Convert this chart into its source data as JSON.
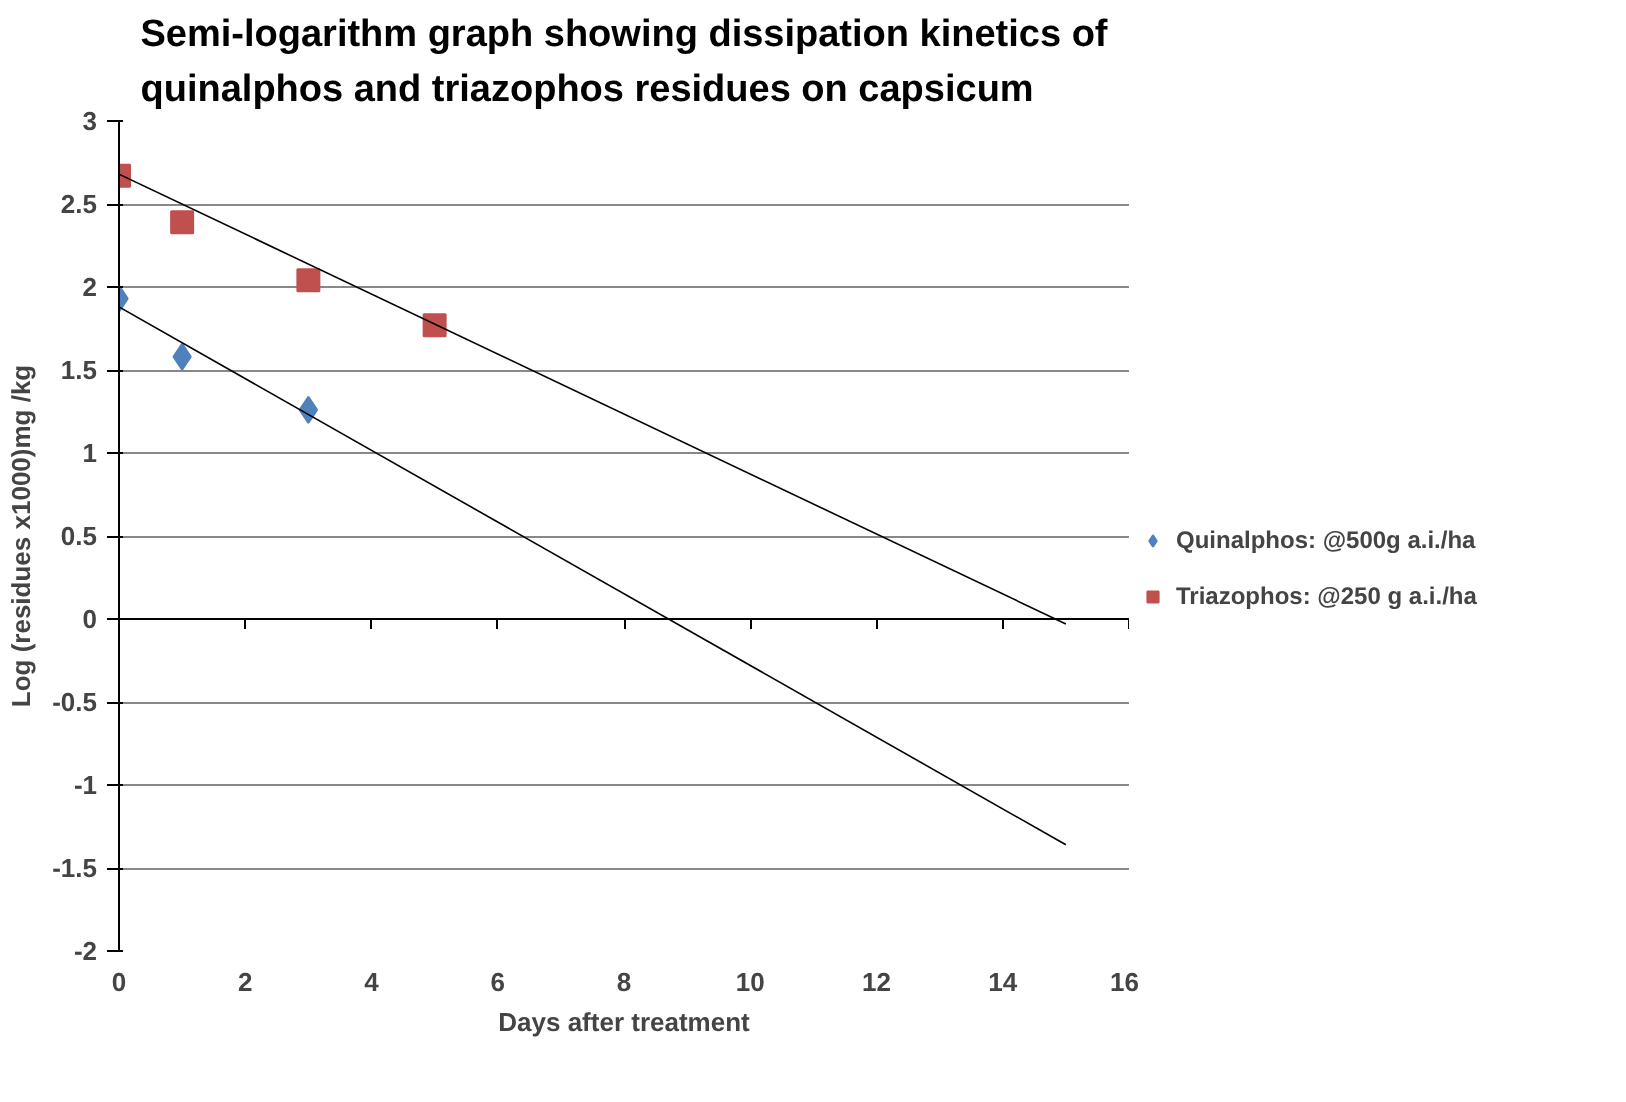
{
  "chart_data": {
    "type": "scatter",
    "title": "Semi-logarithm graph showing dissipation kinetics of\nquinalphos and triazophos residues on capsicum",
    "xlabel": "Days after treatment",
    "ylabel": "Log (residues x1000)mg /kg",
    "xlim": [
      0,
      16
    ],
    "xticks": [
      0,
      2,
      4,
      6,
      8,
      10,
      12,
      14,
      16
    ],
    "ylim": [
      -2,
      3
    ],
    "yticks": [
      -2,
      -1.5,
      -1,
      -0.5,
      0,
      0.5,
      1,
      1.5,
      2,
      2.5,
      3
    ],
    "grid": "y",
    "legend": "right",
    "series": [
      {
        "name": "Quinalphos: @500g a.i./ha",
        "color": "#4f81bd",
        "marker": "diamond",
        "x": [
          0,
          1,
          3
        ],
        "values": [
          1.93,
          1.58,
          1.26
        ]
      },
      {
        "name": "Triazophos: @250 g a.i./ha",
        "color": "#c0504d",
        "marker": "square",
        "x": [
          0,
          1,
          3,
          5
        ],
        "values": [
          2.67,
          2.39,
          2.04,
          1.77
        ]
      },
      {
        "type": "line",
        "color": "#000000",
        "marker": "none",
        "x": [
          0,
          15
        ],
        "values": [
          1.88,
          -1.36
        ]
      },
      {
        "type": "line",
        "color": "#000000",
        "marker": "none",
        "x": [
          0,
          15
        ],
        "values": [
          2.68,
          -0.03
        ]
      }
    ]
  }
}
